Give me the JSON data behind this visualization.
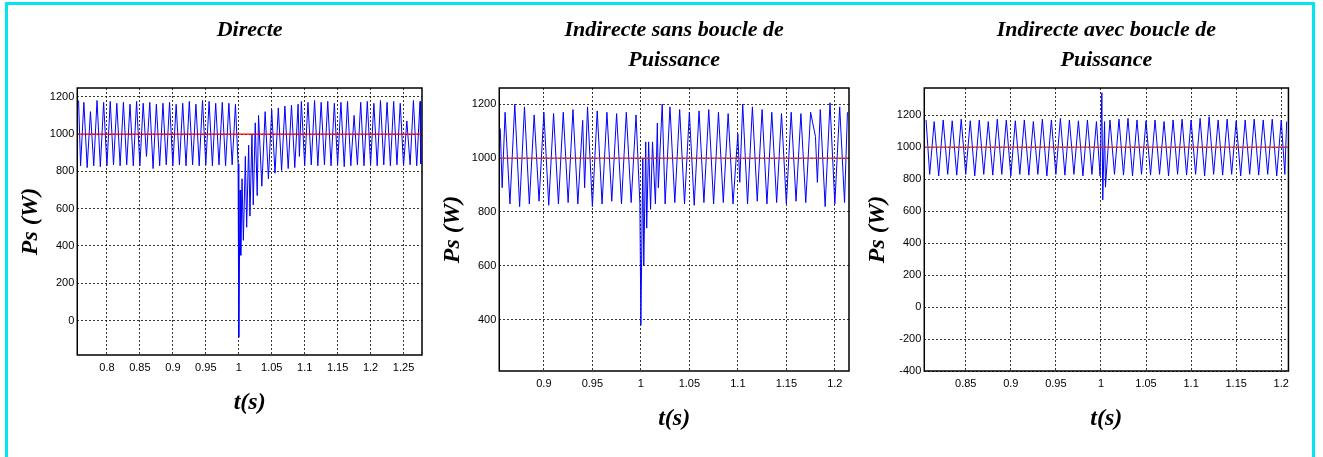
{
  "chart_data": [
    {
      "type": "line",
      "title": "Directe",
      "xlabel": "t(s)",
      "ylabel": "Ps (W)",
      "xlim": [
        0.755,
        1.278
      ],
      "ylim": [
        -185,
        1247
      ],
      "xticks": [
        0.8,
        0.85,
        0.9,
        0.95,
        1,
        1.05,
        1.1,
        1.15,
        1.2,
        1.25
      ],
      "yticks": [
        0,
        200,
        400,
        600,
        800,
        1000,
        1200
      ],
      "grid": true,
      "ref_lines": [
        {
          "axis": "y",
          "value": 1000,
          "color": "#ff0000"
        }
      ],
      "series": [
        {
          "color": "#0000ff",
          "x": [
            0.757,
            0.76,
            0.765,
            0.77,
            0.775,
            0.78,
            0.785,
            0.79,
            0.795,
            0.8,
            0.805,
            0.81,
            0.815,
            0.82,
            0.825,
            0.83,
            0.835,
            0.84,
            0.845,
            0.85,
            0.855,
            0.86,
            0.865,
            0.87,
            0.875,
            0.88,
            0.885,
            0.89,
            0.895,
            0.9,
            0.905,
            0.91,
            0.915,
            0.92,
            0.925,
            0.93,
            0.935,
            0.94,
            0.945,
            0.95,
            0.955,
            0.96,
            0.965,
            0.97,
            0.975,
            0.98,
            0.985,
            0.99,
            0.995,
            0.999,
            1.0,
            1.002,
            1.003,
            1.005,
            1.007,
            1.01,
            1.012,
            1.015,
            1.017,
            1.02,
            1.022,
            1.025,
            1.028,
            1.03,
            1.035,
            1.04,
            1.045,
            1.05,
            1.055,
            1.06,
            1.065,
            1.07,
            1.075,
            1.08,
            1.085,
            1.09,
            1.092,
            1.095,
            1.1,
            1.105,
            1.11,
            1.115,
            1.12,
            1.125,
            1.13,
            1.135,
            1.14,
            1.145,
            1.15,
            1.155,
            1.16,
            1.165,
            1.17,
            1.175,
            1.18,
            1.185,
            1.19,
            1.195,
            1.2,
            1.205,
            1.21,
            1.215,
            1.22,
            1.225,
            1.23,
            1.235,
            1.24,
            1.245,
            1.25,
            1.255,
            1.26,
            1.265,
            1.27,
            1.275,
            1.276
          ],
          "values": [
            1180,
            830,
            1170,
            820,
            1120,
            830,
            1180,
            825,
            1170,
            830,
            1175,
            835,
            1165,
            830,
            1170,
            835,
            1160,
            830,
            1175,
            830,
            1165,
            880,
            1170,
            815,
            1160,
            830,
            1165,
            835,
            1170,
            830,
            1160,
            835,
            1165,
            830,
            1175,
            835,
            1160,
            830,
            1180,
            835,
            1175,
            830,
            1165,
            835,
            1170,
            830,
            1165,
            835,
            1160,
            840,
            -90,
            700,
            350,
            760,
            430,
            880,
            500,
            940,
            560,
            1000,
            620,
            1060,
            670,
            1100,
            720,
            1120,
            760,
            1130,
            790,
            1140,
            805,
            1150,
            815,
            1155,
            820,
            1160,
            880,
            1175,
            830,
            1170,
            835,
            1180,
            830,
            1170,
            835,
            1175,
            830,
            1165,
            835,
            1170,
            825,
            1175,
            830,
            1100,
            835,
            1170,
            830,
            1175,
            835,
            1165,
            830,
            1180,
            835,
            1170,
            830,
            1175,
            835,
            1165,
            830,
            1070,
            835,
            1180,
            830,
            1175,
            840
          ]
        }
      ]
    },
    {
      "type": "line",
      "title": "Indirecte sans boucle de Puissance",
      "xlabel": "t(s)",
      "ylabel": "Ps (W)",
      "xlim": [
        0.854,
        1.2146
      ],
      "ylim": [
        210,
        1260
      ],
      "xticks": [
        0.9,
        0.95,
        1,
        1.05,
        1.1,
        1.15,
        1.2
      ],
      "yticks": [
        400,
        600,
        800,
        1000,
        1200
      ],
      "grid": true,
      "ref_lines": [
        {
          "axis": "y",
          "value": 1000,
          "color": "#cc3333"
        }
      ],
      "series": [
        {
          "color": "#0000ff",
          "x": [
            0.855,
            0.857,
            0.86,
            0.865,
            0.87,
            0.875,
            0.88,
            0.885,
            0.89,
            0.895,
            0.9,
            0.905,
            0.91,
            0.915,
            0.92,
            0.925,
            0.93,
            0.935,
            0.94,
            0.942,
            0.945,
            0.95,
            0.955,
            0.96,
            0.965,
            0.97,
            0.975,
            0.98,
            0.985,
            0.99,
            0.995,
            0.999,
            1.0,
            1.002,
            1.003,
            1.005,
            1.006,
            1.008,
            1.01,
            1.012,
            1.015,
            1.017,
            1.018,
            1.022,
            1.025,
            1.03,
            1.035,
            1.04,
            1.045,
            1.05,
            1.055,
            1.06,
            1.065,
            1.07,
            1.075,
            1.08,
            1.085,
            1.09,
            1.095,
            1.1,
            1.102,
            1.105,
            1.11,
            1.115,
            1.12,
            1.125,
            1.13,
            1.135,
            1.14,
            1.145,
            1.15,
            1.155,
            1.16,
            1.165,
            1.17,
            1.175,
            1.18,
            1.182,
            1.185,
            1.19,
            1.195,
            1.2,
            1.205,
            1.21,
            1.213
          ],
          "values": [
            1110,
            890,
            1170,
            830,
            1200,
            820,
            1190,
            830,
            1160,
            840,
            1170,
            825,
            1165,
            830,
            1170,
            835,
            1180,
            830,
            1140,
            890,
            1190,
            820,
            1175,
            830,
            1170,
            840,
            1165,
            830,
            1170,
            835,
            1160,
            830,
            380,
            1000,
            600,
            1060,
            740,
            1060,
            810,
            1060,
            830,
            1130,
            890,
            1200,
            830,
            1190,
            835,
            1180,
            830,
            1170,
            825,
            1175,
            835,
            1180,
            830,
            1170,
            835,
            1165,
            830,
            1090,
            910,
            1200,
            830,
            1190,
            840,
            1180,
            830,
            1170,
            835,
            1165,
            830,
            1170,
            840,
            1165,
            835,
            1170,
            1080,
            910,
            1180,
            820,
            1205,
            830,
            1190,
            835,
            1170
          ]
        }
      ]
    },
    {
      "type": "line",
      "title": "Indirecte avec boucle de Puissance",
      "xlabel": "t(s)",
      "ylabel": "Ps (W)",
      "xlim": [
        0.804,
        1.208
      ],
      "ylim": [
        -400,
        1370
      ],
      "xticks": [
        0.85,
        0.9,
        0.95,
        1,
        1.05,
        1.1,
        1.15,
        1.2
      ],
      "yticks": [
        -400,
        -200,
        0,
        200,
        400,
        600,
        800,
        1000,
        1200
      ],
      "grid": true,
      "ref_lines": [
        {
          "axis": "y",
          "value": 1000,
          "color": "#cc3333"
        }
      ],
      "series": [
        {
          "color": "#0000ff",
          "x": [
            0.806,
            0.81,
            0.815,
            0.82,
            0.825,
            0.83,
            0.835,
            0.84,
            0.845,
            0.85,
            0.855,
            0.86,
            0.865,
            0.87,
            0.875,
            0.88,
            0.885,
            0.89,
            0.895,
            0.9,
            0.905,
            0.91,
            0.915,
            0.92,
            0.925,
            0.93,
            0.935,
            0.94,
            0.945,
            0.95,
            0.955,
            0.96,
            0.965,
            0.97,
            0.975,
            0.98,
            0.985,
            0.99,
            0.995,
            0.999,
            1.001,
            1.002,
            1.004,
            1.005,
            1.01,
            1.015,
            1.02,
            1.025,
            1.03,
            1.035,
            1.04,
            1.045,
            1.05,
            1.055,
            1.06,
            1.065,
            1.07,
            1.075,
            1.08,
            1.085,
            1.09,
            1.095,
            1.1,
            1.105,
            1.11,
            1.115,
            1.12,
            1.125,
            1.13,
            1.135,
            1.14,
            1.145,
            1.15,
            1.155,
            1.16,
            1.165,
            1.17,
            1.175,
            1.18,
            1.185,
            1.19,
            1.195,
            1.2,
            1.204,
            1.206
          ],
          "values": [
            1170,
            830,
            1160,
            820,
            1170,
            830,
            1165,
            825,
            1175,
            830,
            1165,
            820,
            1170,
            830,
            1160,
            825,
            1175,
            830,
            1170,
            820,
            1165,
            830,
            1170,
            825,
            1160,
            830,
            1175,
            820,
            1170,
            830,
            1180,
            825,
            1170,
            830,
            1165,
            820,
            1170,
            830,
            1160,
            820,
            1340,
            670,
            1160,
            750,
            1170,
            830,
            1175,
            825,
            1180,
            820,
            1170,
            830,
            1165,
            825,
            1170,
            830,
            1160,
            820,
            1170,
            830,
            1175,
            825,
            1170,
            830,
            1180,
            820,
            1190,
            830,
            1170,
            825,
            1175,
            830,
            1165,
            820,
            1170,
            830,
            1175,
            825,
            1170,
            830,
            1175,
            820,
            1170,
            830,
            1160
          ]
        }
      ]
    }
  ]
}
